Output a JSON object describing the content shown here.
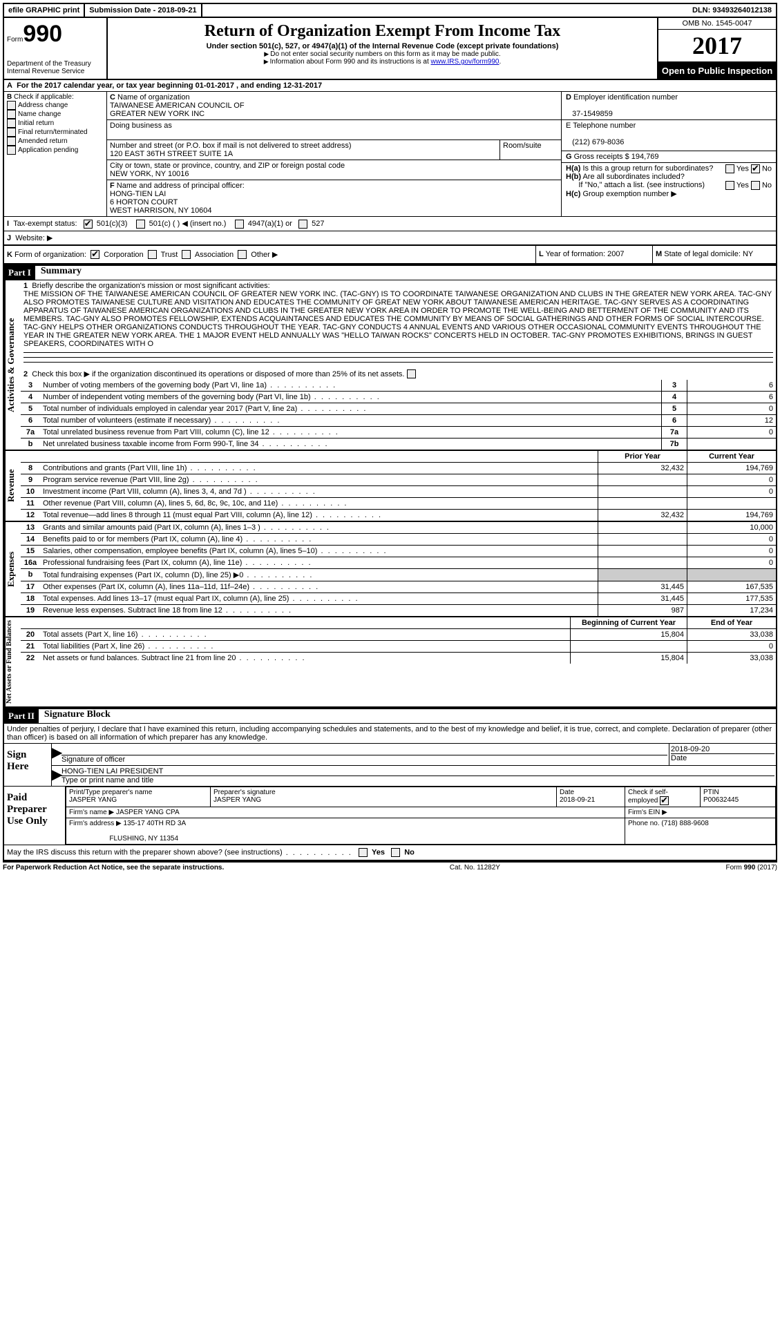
{
  "top": {
    "efile": "efile GRAPHIC print",
    "submission": "Submission Date - 2018-09-21",
    "dln": "DLN: 93493264012138"
  },
  "header": {
    "form_label": "Form",
    "form_number": "990",
    "dept1": "Department of the Treasury",
    "dept2": "Internal Revenue Service",
    "title": "Return of Organization Exempt From Income Tax",
    "subtitle": "Under section 501(c), 527, or 4947(a)(1) of the Internal Revenue Code (except private foundations)",
    "note1": "Do not enter social security numbers on this form as it may be made public.",
    "note2": "Information about Form 990 and its instructions is at ",
    "link": "www.IRS.gov/form990",
    "omb": "OMB No. 1545-0047",
    "year": "2017",
    "open": "Open to Public Inspection"
  },
  "a_line": "For the 2017 calendar year, or tax year beginning 01-01-2017   , and ending 12-31-2017",
  "b": {
    "label": "Check if applicable:",
    "opts": [
      "Address change",
      "Name change",
      "Initial return",
      "Final return/terminated",
      "Amended return",
      "Application pending"
    ]
  },
  "c": {
    "name_label": "Name of organization",
    "name1": "TAIWANESE AMERICAN COUNCIL OF",
    "name2": "GREATER NEW YORK INC",
    "dba_label": "Doing business as",
    "addr_label": "Number and street (or P.O. box if mail is not delivered to street address)",
    "room_label": "Room/suite",
    "addr": "120 EAST 36TH STREET SUITE 1A",
    "city_label": "City or town, state or province, country, and ZIP or foreign postal code",
    "city": "NEW YORK, NY  10016"
  },
  "d": {
    "label": "Employer identification number",
    "val": "37-1549859"
  },
  "e": {
    "label": "E Telephone number",
    "val": "(212) 679-8036"
  },
  "g": {
    "label": "Gross receipts $",
    "val": "194,769"
  },
  "f": {
    "label": "Name and address of principal officer:",
    "l1": "HONG-TIEN LAI",
    "l2": "6 HORTON COURT",
    "l3": "WEST HARRISON, NY  10604"
  },
  "h": {
    "a": "Is this a group return for subordinates?",
    "b": "Are all subordinates included?",
    "note": "If \"No,\" attach a list. (see instructions)",
    "c": "Group exemption number ▶",
    "yes": "Yes",
    "no": "No"
  },
  "i": {
    "label": "Tax-exempt status:",
    "o1": "501(c)(3)",
    "o2": "501(c) (  ) ◀ (insert no.)",
    "o3": "4947(a)(1) or",
    "o4": "527"
  },
  "j": "Website: ▶",
  "k": {
    "label": "Form of organization:",
    "opts": [
      "Corporation",
      "Trust",
      "Association",
      "Other ▶"
    ]
  },
  "l": {
    "label": "Year of formation:",
    "val": "2007"
  },
  "m": {
    "label": "State of legal domicile:",
    "val": "NY"
  },
  "part1": {
    "bar": "Part I",
    "title": "Summary",
    "q1_label": "Briefly describe the organization's mission or most significant activities:",
    "q1_text": "THE MISSION OF THE TAIWANESE AMERICAN COUNCIL OF GREATER NEW YORK INC. (TAC-GNY) IS TO COORDINATE TAIWANESE ORGANIZATION AND CLUBS IN THE GREATER NEW YORK AREA. TAC-GNY ALSO PROMOTES TAIWANESE CULTURE AND VISITATION AND EDUCATES THE COMMUNITY OF GREAT NEW YORK ABOUT TAIWANESE AMERICAN HERITAGE. TAC-GNY SERVES AS A COORDINATING APPARATUS OF TAIWANESE AMERICAN ORGANIZATIONS AND CLUBS IN THE GREATER NEW YORK AREA IN ORDER TO PROMOTE THE WELL-BEING AND BETTERMENT OF THE COMMUNITY AND ITS MEMBERS. TAC-GNY ALSO PROMOTES FELLOWSHIP, EXTENDS ACQUAINTANCES AND EDUCATES THE COMMUNITY BY MEANS OF SOCIAL GATHERINGS AND OTHER FORMS OF SOCIAL INTERCOURSE. TAC-GNY HELPS OTHER ORGANIZATIONS CONDUCTS THROUGHOUT THE YEAR. TAC-GNY CONDUCTS 4 ANNUAL EVENTS AND VARIOUS OTHER OCCASIONAL COMMUNITY EVENTS THROUGHOUT THE YEAR IN THE GREATER NEW YORK AREA. THE 1 MAJOR EVENT HELD ANNUALLY WAS \"HELLO TAIWAN ROCKS\" CONCERTS HELD IN OCTOBER. TAC-GNY PROMOTES EXHIBITIONS, BRINGS IN GUEST SPEAKERS, COORDINATES WITH O",
    "q2": "Check this box ▶       if the organization discontinued its operations or disposed of more than 25% of its net assets.",
    "lines_gov": [
      {
        "n": "3",
        "d": "Number of voting members of the governing body (Part VI, line 1a)",
        "box": "3",
        "v": "6"
      },
      {
        "n": "4",
        "d": "Number of independent voting members of the governing body (Part VI, line 1b)",
        "box": "4",
        "v": "6"
      },
      {
        "n": "5",
        "d": "Total number of individuals employed in calendar year 2017 (Part V, line 2a)",
        "box": "5",
        "v": "0"
      },
      {
        "n": "6",
        "d": "Total number of volunteers (estimate if necessary)",
        "box": "6",
        "v": "12"
      },
      {
        "n": "7a",
        "d": "Total unrelated business revenue from Part VIII, column (C), line 12",
        "box": "7a",
        "v": "0"
      },
      {
        "n": "b",
        "d": "Net unrelated business taxable income from Form 990-T, line 34",
        "box": "7b",
        "v": ""
      }
    ],
    "col_prior": "Prior Year",
    "col_current": "Current Year",
    "revenue": [
      {
        "n": "8",
        "d": "Contributions and grants (Part VIII, line 1h)",
        "p": "32,432",
        "c": "194,769"
      },
      {
        "n": "9",
        "d": "Program service revenue (Part VIII, line 2g)",
        "p": "",
        "c": "0"
      },
      {
        "n": "10",
        "d": "Investment income (Part VIII, column (A), lines 3, 4, and 7d )",
        "p": "",
        "c": "0"
      },
      {
        "n": "11",
        "d": "Other revenue (Part VIII, column (A), lines 5, 6d, 8c, 9c, 10c, and 11e)",
        "p": "",
        "c": ""
      },
      {
        "n": "12",
        "d": "Total revenue—add lines 8 through 11 (must equal Part VIII, column (A), line 12)",
        "p": "32,432",
        "c": "194,769"
      }
    ],
    "expenses": [
      {
        "n": "13",
        "d": "Grants and similar amounts paid (Part IX, column (A), lines 1–3 )",
        "p": "",
        "c": "10,000"
      },
      {
        "n": "14",
        "d": "Benefits paid to or for members (Part IX, column (A), line 4)",
        "p": "",
        "c": "0"
      },
      {
        "n": "15",
        "d": "Salaries, other compensation, employee benefits (Part IX, column (A), lines 5–10)",
        "p": "",
        "c": "0"
      },
      {
        "n": "16a",
        "d": "Professional fundraising fees (Part IX, column (A), line 11e)",
        "p": "",
        "c": "0"
      },
      {
        "n": "b",
        "d": "Total fundraising expenses (Part IX, column (D), line 25) ▶0",
        "p": "GRAY",
        "c": "GRAY"
      },
      {
        "n": "17",
        "d": "Other expenses (Part IX, column (A), lines 11a–11d, 11f–24e)",
        "p": "31,445",
        "c": "167,535"
      },
      {
        "n": "18",
        "d": "Total expenses. Add lines 13–17 (must equal Part IX, column (A), line 25)",
        "p": "31,445",
        "c": "177,535"
      },
      {
        "n": "19",
        "d": "Revenue less expenses. Subtract line 18 from line 12",
        "p": "987",
        "c": "17,234"
      }
    ],
    "col_begin": "Beginning of Current Year",
    "col_end": "End of Year",
    "netassets": [
      {
        "n": "20",
        "d": "Total assets (Part X, line 16)",
        "p": "15,804",
        "c": "33,038"
      },
      {
        "n": "21",
        "d": "Total liabilities (Part X, line 26)",
        "p": "",
        "c": "0"
      },
      {
        "n": "22",
        "d": "Net assets or fund balances. Subtract line 21 from line 20",
        "p": "15,804",
        "c": "33,038"
      }
    ],
    "vlabels": {
      "gov": "Activities & Governance",
      "rev": "Revenue",
      "exp": "Expenses",
      "net": "Net Assets or Fund Balances"
    }
  },
  "part2": {
    "bar": "Part II",
    "title": "Signature Block",
    "perjury": "Under penalties of perjury, I declare that I have examined this return, including accompanying schedules and statements, and to the best of my knowledge and belief, it is true, correct, and complete. Declaration of preparer (other than officer) is based on all information of which preparer has any knowledge.",
    "sign_here": "Sign Here",
    "sig_date": "2018-09-20",
    "sig_officer": "Signature of officer",
    "date_label": "Date",
    "officer_name": "HONG-TIEN LAI PRESIDENT",
    "type_name": "Type or print name and title",
    "paid": "Paid Preparer Use Only",
    "prep_name_label": "Print/Type preparer's name",
    "prep_name": "JASPER YANG",
    "prep_sig_label": "Preparer's signature",
    "prep_sig": "JASPER YANG",
    "prep_date_label": "Date",
    "prep_date": "2018-09-21",
    "check_label": "Check        if self-employed",
    "ptin_label": "PTIN",
    "ptin": "P00632445",
    "firm_name_label": "Firm's name     ▶",
    "firm_name": "JASPER YANG CPA",
    "firm_ein_label": "Firm's EIN ▶",
    "firm_addr_label": "Firm's address ▶",
    "firm_addr1": "135-17 40TH RD 3A",
    "firm_addr2": "FLUSHING, NY  11354",
    "firm_phone_label": "Phone no.",
    "firm_phone": "(718) 888-9608",
    "discuss": "May the IRS discuss this return with the preparer shown above? (see instructions)",
    "yes": "Yes",
    "no": "No"
  },
  "footer": {
    "left": "For Paperwork Reduction Act Notice, see the separate instructions.",
    "mid": "Cat. No. 11282Y",
    "right": "Form 990 (2017)"
  }
}
